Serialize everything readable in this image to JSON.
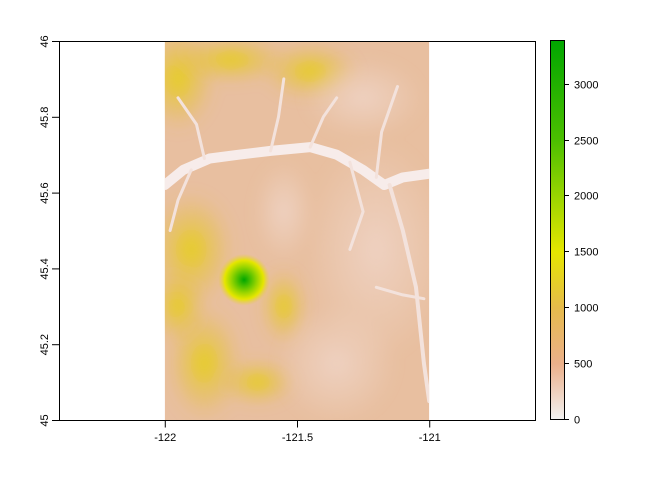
{
  "map": {
    "x_axis": {
      "range": [
        -122.4,
        -120.6
      ],
      "ticks": [
        -122,
        -121.5,
        -121
      ],
      "tick_labels": [
        "-122",
        "-121.5",
        "-121"
      ]
    },
    "y_axis": {
      "range": [
        45,
        46
      ],
      "ticks": [
        45,
        45.2,
        45.4,
        45.6,
        45.8,
        46
      ],
      "tick_labels": [
        "45",
        "45.2",
        "45.4",
        "45.6",
        "45.8",
        "46"
      ]
    },
    "raster_extent": {
      "xmin": -122,
      "xmax": -121,
      "ymin": 45,
      "ymax": 46
    },
    "peak": {
      "lon": -121.7,
      "lat": 45.37,
      "value": 3400
    },
    "river": {
      "path": [
        [
          -122,
          45.62
        ],
        [
          -121.93,
          45.66
        ],
        [
          -121.83,
          45.69
        ],
        [
          -121.72,
          45.7
        ],
        [
          -121.6,
          45.71
        ],
        [
          -121.45,
          45.72
        ],
        [
          -121.35,
          45.7
        ],
        [
          -121.25,
          45.66
        ],
        [
          -121.17,
          45.62
        ],
        [
          -121.1,
          45.64
        ],
        [
          -121,
          45.65
        ]
      ]
    },
    "background_color": "#e8bfa0"
  },
  "legend": {
    "min": 0,
    "max": 3400,
    "ticks": [
      0,
      500,
      1000,
      1500,
      2000,
      2500,
      3000
    ],
    "tick_labels": [
      "0",
      "500",
      "1000",
      "1500",
      "2000",
      "2500",
      "3000"
    ],
    "colors": [
      "#f2f2f2",
      "#ebb08b",
      "#e6ba4c",
      "#e6e600",
      "#9ad500",
      "#4cbf00",
      "#00a600"
    ]
  }
}
